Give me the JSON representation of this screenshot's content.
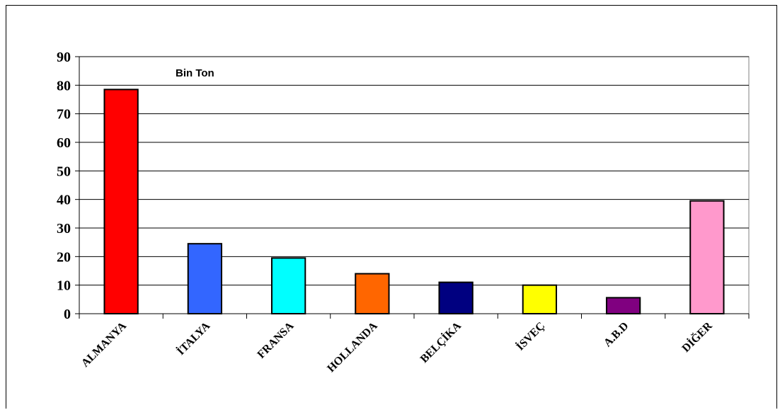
{
  "chart_data": {
    "type": "bar",
    "categories": [
      "ALMANYA",
      "İTALYA",
      "FRANSA",
      "HOLLANDA",
      "BELÇİKA",
      "İSVEÇ",
      "A.B.D",
      "DİĞER"
    ],
    "values": [
      78.5,
      24.5,
      19.5,
      14,
      11,
      10,
      5.6,
      39.5
    ],
    "colors": [
      "#ff0000",
      "#3366ff",
      "#00ffff",
      "#ff6600",
      "#000080",
      "#ffff00",
      "#800080",
      "#ff99cc"
    ],
    "annotation": "Bin Ton",
    "ylim": [
      0,
      90
    ],
    "yticks": [
      0,
      10,
      20,
      30,
      40,
      50,
      60,
      70,
      80,
      90
    ],
    "grid": true,
    "legend": "none"
  }
}
